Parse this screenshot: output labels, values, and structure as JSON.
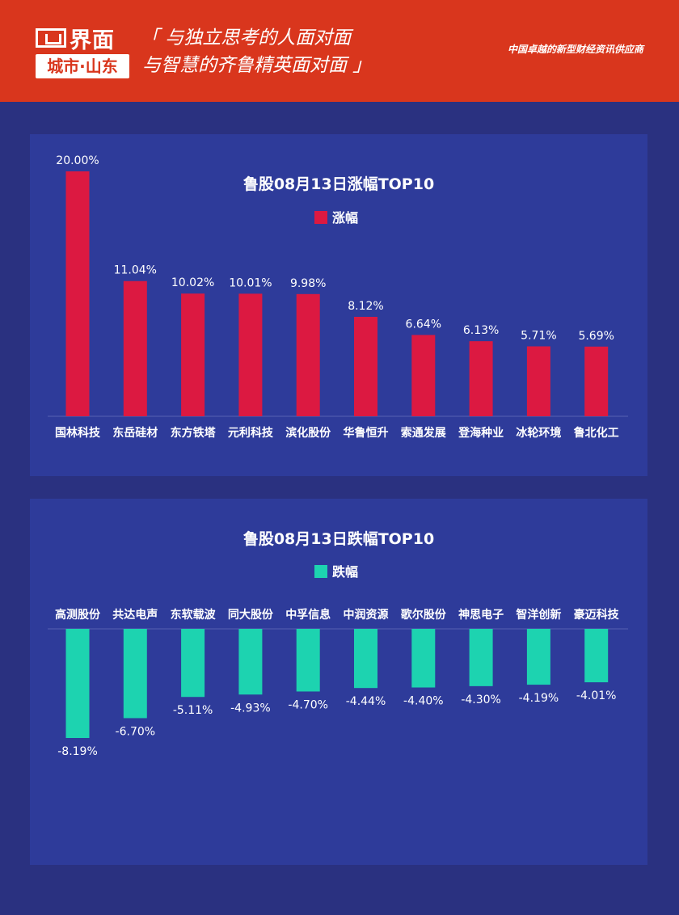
{
  "header": {
    "logo_word": "界面",
    "logo_city": "城市·山东",
    "slogan_line1": "「 与独立思考的人面对面",
    "slogan_line2": "与智慧的齐鲁精英面对面 」",
    "tagline": "中国卓越的新型财经资讯供应商"
  },
  "colors": {
    "header_bg": "#d9361d",
    "page_bg": "#2a3180",
    "panel_bg": "#2e3b9a",
    "gain_bar": "#dc1941",
    "loss_bar": "#1dd3b0"
  },
  "chart_data": [
    {
      "type": "bar",
      "title": "鲁股08月13日涨幅TOP10",
      "legend": "涨幅",
      "legend_position": "top-center",
      "categories": [
        "国林科技",
        "东岳硅材",
        "东方铁塔",
        "元利科技",
        "滨化股份",
        "华鲁恒升",
        "索通发展",
        "登海种业",
        "冰轮环境",
        "鲁北化工"
      ],
      "values": [
        20.0,
        11.04,
        10.02,
        10.01,
        9.98,
        8.12,
        6.64,
        6.13,
        5.71,
        5.69
      ],
      "labels": [
        "20.00%",
        "11.04%",
        "10.02%",
        "10.01%",
        "9.98%",
        "8.12%",
        "6.64%",
        "6.13%",
        "5.71%",
        "5.69%"
      ],
      "ylim": [
        0,
        20
      ],
      "grid": false
    },
    {
      "type": "bar",
      "title": "鲁股08月13日跌幅TOP10",
      "legend": "跌幅",
      "legend_position": "top-center",
      "categories": [
        "高测股份",
        "共达电声",
        "东软载波",
        "同大股份",
        "中孚信息",
        "中润资源",
        "歌尔股份",
        "神思电子",
        "智洋创新",
        "豪迈科技"
      ],
      "values": [
        -8.19,
        -6.7,
        -5.11,
        -4.93,
        -4.7,
        -4.44,
        -4.4,
        -4.3,
        -4.19,
        -4.01
      ],
      "labels": [
        "-8.19%",
        "-6.70%",
        "-5.11%",
        "-4.93%",
        "-4.70%",
        "-4.44%",
        "-4.40%",
        "-4.30%",
        "-4.19%",
        "-4.01%"
      ],
      "ylim": [
        -8.19,
        0
      ],
      "grid": false
    }
  ]
}
